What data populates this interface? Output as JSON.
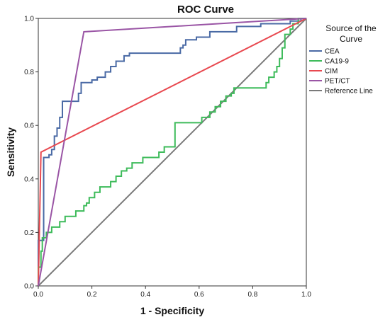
{
  "chart_data": {
    "type": "line",
    "title": "ROC Curve",
    "xlabel": "1 - Specificity",
    "ylabel": "Sensitivity",
    "xlim": [
      0,
      1
    ],
    "ylim": [
      0,
      1
    ],
    "x_ticks": [
      "0.0",
      "0.2",
      "0.4",
      "0.6",
      "0.8",
      "1.0"
    ],
    "y_ticks": [
      "0.0",
      "0.2",
      "0.4",
      "0.6",
      "0.8",
      "1.0"
    ],
    "grid": false,
    "legend": {
      "title_lines": [
        "Source of the",
        "Curve"
      ],
      "placement": "right"
    },
    "series": [
      {
        "name": "CEA",
        "color": "#4a6aa5",
        "points": [
          [
            0,
            0
          ],
          [
            0,
            0.17
          ],
          [
            0.02,
            0.17
          ],
          [
            0.02,
            0.48
          ],
          [
            0.04,
            0.48
          ],
          [
            0.04,
            0.49
          ],
          [
            0.05,
            0.49
          ],
          [
            0.05,
            0.51
          ],
          [
            0.06,
            0.51
          ],
          [
            0.06,
            0.56
          ],
          [
            0.07,
            0.56
          ],
          [
            0.07,
            0.59
          ],
          [
            0.08,
            0.59
          ],
          [
            0.08,
            0.63
          ],
          [
            0.09,
            0.63
          ],
          [
            0.09,
            0.69
          ],
          [
            0.15,
            0.69
          ],
          [
            0.15,
            0.72
          ],
          [
            0.16,
            0.72
          ],
          [
            0.16,
            0.76
          ],
          [
            0.2,
            0.76
          ],
          [
            0.2,
            0.77
          ],
          [
            0.22,
            0.77
          ],
          [
            0.22,
            0.78
          ],
          [
            0.25,
            0.78
          ],
          [
            0.25,
            0.8
          ],
          [
            0.27,
            0.8
          ],
          [
            0.27,
            0.82
          ],
          [
            0.29,
            0.82
          ],
          [
            0.29,
            0.84
          ],
          [
            0.32,
            0.84
          ],
          [
            0.32,
            0.86
          ],
          [
            0.34,
            0.86
          ],
          [
            0.34,
            0.87
          ],
          [
            0.53,
            0.87
          ],
          [
            0.53,
            0.89
          ],
          [
            0.54,
            0.89
          ],
          [
            0.54,
            0.9
          ],
          [
            0.55,
            0.9
          ],
          [
            0.55,
            0.92
          ],
          [
            0.59,
            0.92
          ],
          [
            0.59,
            0.93
          ],
          [
            0.64,
            0.93
          ],
          [
            0.64,
            0.95
          ],
          [
            0.74,
            0.95
          ],
          [
            0.74,
            0.97
          ],
          [
            0.83,
            0.97
          ],
          [
            0.83,
            0.98
          ],
          [
            0.94,
            0.98
          ],
          [
            0.94,
            0.99
          ],
          [
            0.98,
            0.99
          ],
          [
            0.98,
            1.0
          ],
          [
            1.0,
            1.0
          ]
        ]
      },
      {
        "name": "CA19-9",
        "color": "#3dbb5a",
        "points": [
          [
            0,
            0
          ],
          [
            0,
            0.07
          ],
          [
            0.01,
            0.07
          ],
          [
            0.01,
            0.13
          ],
          [
            0.015,
            0.13
          ],
          [
            0.015,
            0.18
          ],
          [
            0.03,
            0.18
          ],
          [
            0.03,
            0.2
          ],
          [
            0.05,
            0.2
          ],
          [
            0.05,
            0.22
          ],
          [
            0.08,
            0.22
          ],
          [
            0.08,
            0.24
          ],
          [
            0.1,
            0.24
          ],
          [
            0.1,
            0.26
          ],
          [
            0.14,
            0.26
          ],
          [
            0.14,
            0.28
          ],
          [
            0.17,
            0.28
          ],
          [
            0.17,
            0.3
          ],
          [
            0.18,
            0.3
          ],
          [
            0.18,
            0.31
          ],
          [
            0.19,
            0.31
          ],
          [
            0.19,
            0.33
          ],
          [
            0.21,
            0.33
          ],
          [
            0.21,
            0.35
          ],
          [
            0.23,
            0.35
          ],
          [
            0.23,
            0.37
          ],
          [
            0.27,
            0.37
          ],
          [
            0.27,
            0.39
          ],
          [
            0.29,
            0.39
          ],
          [
            0.29,
            0.41
          ],
          [
            0.31,
            0.41
          ],
          [
            0.31,
            0.43
          ],
          [
            0.33,
            0.43
          ],
          [
            0.33,
            0.44
          ],
          [
            0.35,
            0.44
          ],
          [
            0.35,
            0.46
          ],
          [
            0.39,
            0.46
          ],
          [
            0.39,
            0.48
          ],
          [
            0.45,
            0.48
          ],
          [
            0.45,
            0.5
          ],
          [
            0.47,
            0.5
          ],
          [
            0.47,
            0.52
          ],
          [
            0.51,
            0.52
          ],
          [
            0.51,
            0.61
          ],
          [
            0.61,
            0.61
          ],
          [
            0.61,
            0.63
          ],
          [
            0.64,
            0.63
          ],
          [
            0.64,
            0.65
          ],
          [
            0.66,
            0.65
          ],
          [
            0.66,
            0.67
          ],
          [
            0.68,
            0.67
          ],
          [
            0.68,
            0.69
          ],
          [
            0.7,
            0.69
          ],
          [
            0.7,
            0.71
          ],
          [
            0.72,
            0.71
          ],
          [
            0.72,
            0.72
          ],
          [
            0.73,
            0.72
          ],
          [
            0.73,
            0.74
          ],
          [
            0.85,
            0.74
          ],
          [
            0.85,
            0.76
          ],
          [
            0.86,
            0.76
          ],
          [
            0.86,
            0.78
          ],
          [
            0.88,
            0.78
          ],
          [
            0.88,
            0.8
          ],
          [
            0.89,
            0.8
          ],
          [
            0.89,
            0.82
          ],
          [
            0.9,
            0.82
          ],
          [
            0.9,
            0.85
          ],
          [
            0.91,
            0.85
          ],
          [
            0.91,
            0.89
          ],
          [
            0.92,
            0.89
          ],
          [
            0.92,
            0.94
          ],
          [
            0.94,
            0.94
          ],
          [
            0.94,
            0.96
          ],
          [
            0.95,
            0.96
          ],
          [
            0.95,
            0.98
          ],
          [
            0.97,
            0.98
          ],
          [
            0.97,
            1.0
          ],
          [
            1.0,
            1.0
          ]
        ]
      },
      {
        "name": "CIM",
        "color": "#e8484f",
        "points": [
          [
            0,
            0
          ],
          [
            0.01,
            0.5
          ],
          [
            1.0,
            1.0
          ]
        ]
      },
      {
        "name": "PET/CT",
        "color": "#9a55a5",
        "points": [
          [
            0,
            0
          ],
          [
            0.17,
            0.95
          ],
          [
            1.0,
            1.0
          ]
        ]
      },
      {
        "name": "Reference Line",
        "color": "#7a7a7a",
        "points": [
          [
            0,
            0
          ],
          [
            1.0,
            1.0
          ]
        ]
      }
    ]
  }
}
